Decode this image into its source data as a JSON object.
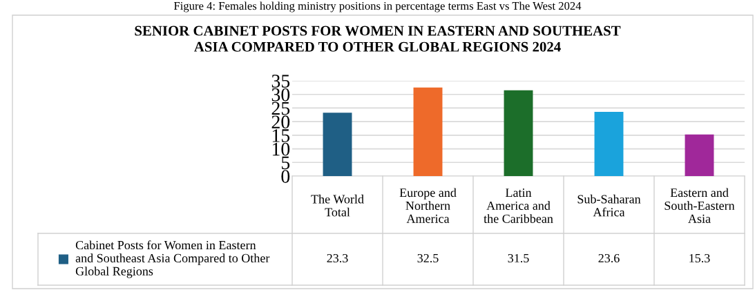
{
  "chart_data": {
    "type": "bar",
    "title": "SENIOR CABINET POSTS FOR WOMEN IN EASTERN AND SOUTHEAST\nASIA COMPARED TO OTHER GLOBAL REGIONS 2024",
    "annotations": [
      "Figure 4: Females holding ministry positions in percentage terms East vs The West 2024"
    ],
    "categories": [
      "The World\nTotal",
      "Europe and\nNorthern\nAmerica",
      "Latin\nAmerica and\nthe Caribbean",
      "Sub-Saharan\nAfrica",
      "Eastern and\nSouth-Eastern\nAsia"
    ],
    "series": [
      {
        "name": "Cabinet Posts for Women in Eastern\nand Southeast Asia Compared to Other\nGlobal Regions",
        "color": "#1f5f85",
        "colors": [
          "#1f5f85",
          "#ee6a2a",
          "#1c6e2a",
          "#1aa3dc",
          "#a0289a"
        ],
        "values": [
          23.3,
          32.5,
          31.5,
          23.6,
          15.3
        ]
      }
    ],
    "ylim": [
      0,
      35
    ],
    "yticks": [
      0,
      5,
      10,
      15,
      20,
      25,
      30,
      35
    ],
    "grid": "y",
    "data_labels": true,
    "legend": "left"
  }
}
